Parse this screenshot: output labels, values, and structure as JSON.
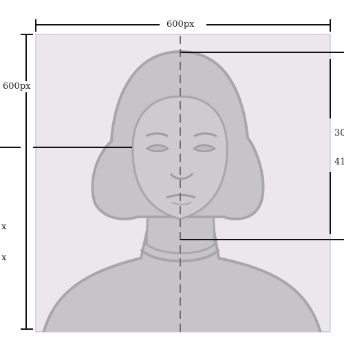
{
  "diagram": {
    "width_label": "600px",
    "height_label": "600px",
    "right_label_1": "30",
    "right_label_2": "41",
    "left_label_1": "x",
    "left_label_2": "x"
  },
  "colors": {
    "photo_background": "#ece7ea",
    "figure_fill": "#c6c4c7",
    "figure_edge": "#a9a6a9",
    "dimension_line": "#111111"
  }
}
